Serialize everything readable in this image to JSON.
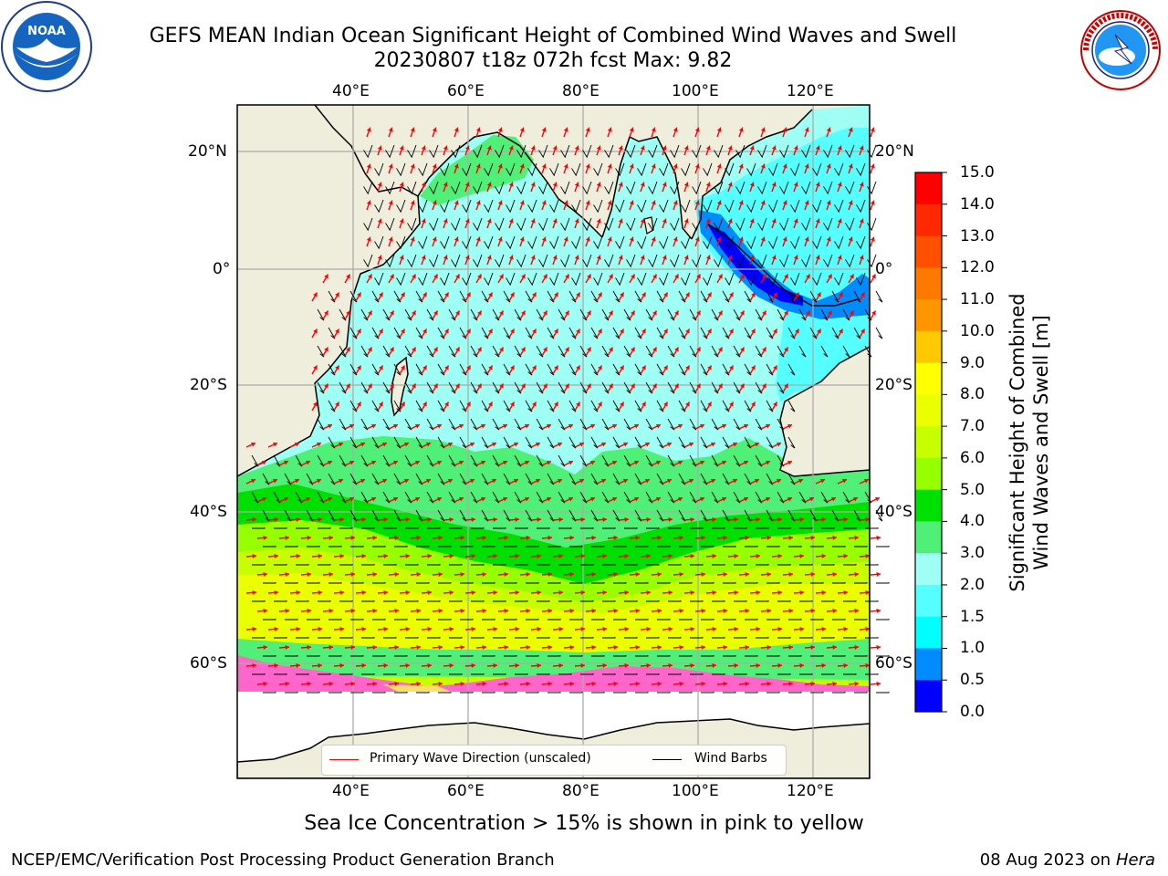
{
  "header": {
    "title_line1": "GEFS MEAN Indian Ocean Significant Height of Combined Wind Waves and Swell",
    "title_line2": "20230807 t18z 072h fcst   Max: 9.82"
  },
  "logos": {
    "noaa_text": "NOAA",
    "noaa_ring_text": "NATIONAL OCEANIC AND ATMOSPHERIC ADMINISTRATION · U.S. DEPARTMENT OF COMMERCE",
    "nws_ring_text": "NATIONAL WEATHER SERVICE"
  },
  "map": {
    "lon_ticks": [
      "40°E",
      "60°E",
      "80°E",
      "100°E",
      "120°E"
    ],
    "lat_ticks": [
      "20°N",
      "0°",
      "20°S",
      "40°S",
      "60°S"
    ],
    "region": "Indian Ocean",
    "land_color": "#efeedd"
  },
  "colorbar": {
    "label": "Significant Height of Combined Wind Waves and Swell [m]",
    "label_line1": "Significant Height of Combined",
    "label_line2": "Wind Waves and Swell [m]",
    "ticks": [
      "15.0",
      "14.0",
      "13.0",
      "12.0",
      "11.0",
      "10.0",
      "9.0",
      "8.0",
      "7.0",
      "6.0",
      "5.0",
      "4.0",
      "3.0",
      "2.0",
      "1.5",
      "1.0",
      "0.5",
      "0.0"
    ],
    "colors": [
      "#ff0000",
      "#ff2800",
      "#ff5000",
      "#ff7800",
      "#ff9600",
      "#ffc800",
      "#ffff00",
      "#eaff00",
      "#c8ff00",
      "#96ff00",
      "#00e000",
      "#50f078",
      "#9ffff4",
      "#56ffff",
      "#00ffff",
      "#008cff",
      "#0000ff"
    ]
  },
  "legend": {
    "wave_label": "Primary Wave Direction (unscaled)",
    "wave_color": "#ff0000",
    "wind_label": "Wind Barbs",
    "wind_color": "#000000"
  },
  "note": "Sea Ice Concentration > 15% is shown in pink to yellow",
  "footer": {
    "left": "NCEP/EMC/Verification Post Processing Product Generation Branch",
    "date": "08 Aug 2023 on",
    "host": "Hera"
  }
}
